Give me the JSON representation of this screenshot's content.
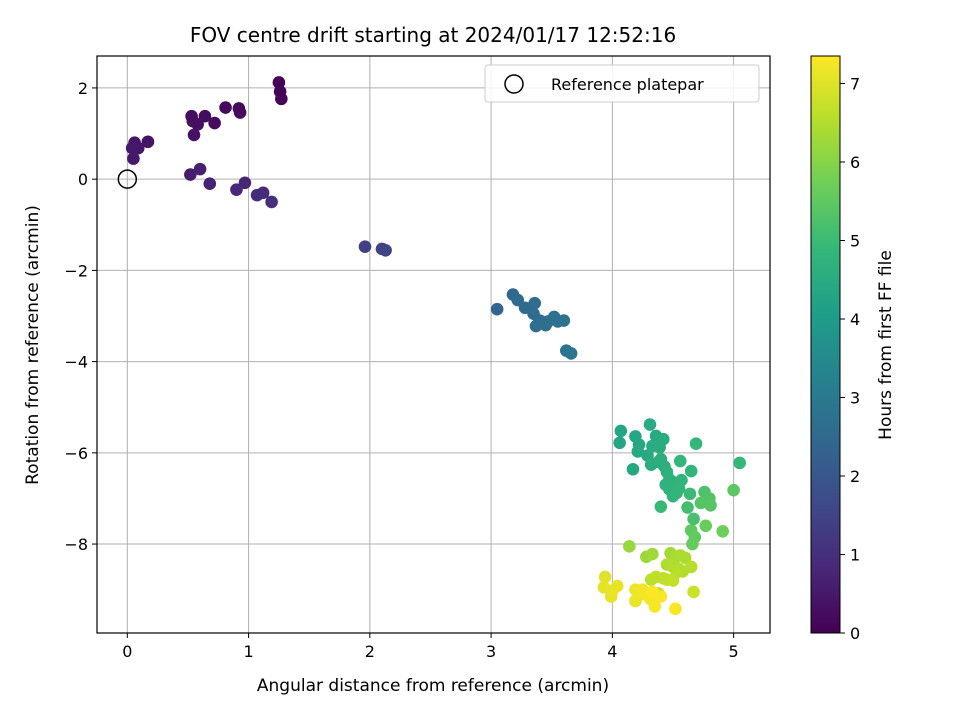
{
  "chart_data": {
    "type": "scatter",
    "title": "FOV centre drift starting at 2024/01/17 12:52:16",
    "xlabel": "Angular distance from reference (arcmin)",
    "ylabel": "Rotation from reference (arcmin)",
    "xlim": [
      -0.25,
      5.3
    ],
    "ylim": [
      -9.95,
      2.7
    ],
    "xticks": [
      0,
      1,
      2,
      3,
      4,
      5
    ],
    "yticks": [
      2,
      0,
      -2,
      -4,
      -6,
      -8
    ],
    "ytick_labels": [
      "2",
      "0",
      "−2",
      "−4",
      "−6",
      "−8"
    ],
    "grid": true,
    "legend": {
      "position": "top-right",
      "entries": [
        "Reference platepar"
      ]
    },
    "reference_point": {
      "x": 0,
      "y": 0
    },
    "colorbar": {
      "label": "Hours from first FF file",
      "range": [
        0,
        7.35
      ],
      "ticks": [
        0,
        1,
        2,
        3,
        4,
        5,
        6,
        7
      ],
      "colormap": "viridis",
      "stops": [
        "#440154",
        "#482878",
        "#3e4989",
        "#31688e",
        "#26828e",
        "#1f9e89",
        "#35b779",
        "#6ece58",
        "#b5de2b",
        "#fde725"
      ]
    },
    "points": [
      {
        "x": 1.25,
        "y": 2.12,
        "t": 0.05
      },
      {
        "x": 1.26,
        "y": 1.92,
        "t": 0.08
      },
      {
        "x": 1.27,
        "y": 1.76,
        "t": 0.1
      },
      {
        "x": 0.81,
        "y": 1.57,
        "t": 0.15
      },
      {
        "x": 0.92,
        "y": 1.55,
        "t": 0.18
      },
      {
        "x": 0.93,
        "y": 1.46,
        "t": 0.2
      },
      {
        "x": 0.72,
        "y": 1.23,
        "t": 0.22
      },
      {
        "x": 0.64,
        "y": 1.38,
        "t": 0.25
      },
      {
        "x": 0.53,
        "y": 1.38,
        "t": 0.28
      },
      {
        "x": 0.54,
        "y": 1.27,
        "t": 0.3
      },
      {
        "x": 0.58,
        "y": 1.2,
        "t": 0.32
      },
      {
        "x": 0.55,
        "y": 0.97,
        "t": 0.35
      },
      {
        "x": 0.17,
        "y": 0.82,
        "t": 0.4
      },
      {
        "x": 0.06,
        "y": 0.8,
        "t": 0.42
      },
      {
        "x": 0.09,
        "y": 0.68,
        "t": 0.45
      },
      {
        "x": 0.04,
        "y": 0.68,
        "t": 0.48
      },
      {
        "x": 0.05,
        "y": 0.45,
        "t": 0.5
      },
      {
        "x": 0.52,
        "y": 0.1,
        "t": 0.6
      },
      {
        "x": 0.6,
        "y": 0.22,
        "t": 0.65
      },
      {
        "x": 0.68,
        "y": -0.1,
        "t": 0.7
      },
      {
        "x": 0.97,
        "y": -0.08,
        "t": 0.78
      },
      {
        "x": 0.9,
        "y": -0.23,
        "t": 0.82
      },
      {
        "x": 1.12,
        "y": -0.3,
        "t": 0.9
      },
      {
        "x": 1.07,
        "y": -0.35,
        "t": 0.95
      },
      {
        "x": 1.19,
        "y": -0.5,
        "t": 1.0
      },
      {
        "x": 1.96,
        "y": -1.48,
        "t": 1.4
      },
      {
        "x": 2.1,
        "y": -1.53,
        "t": 1.45
      },
      {
        "x": 2.13,
        "y": -1.56,
        "t": 1.48
      },
      {
        "x": 3.05,
        "y": -2.85,
        "t": 2.4
      },
      {
        "x": 3.18,
        "y": -2.53,
        "t": 2.45
      },
      {
        "x": 3.22,
        "y": -2.65,
        "t": 2.5
      },
      {
        "x": 3.28,
        "y": -2.82,
        "t": 2.55
      },
      {
        "x": 3.36,
        "y": -2.72,
        "t": 2.58
      },
      {
        "x": 3.35,
        "y": -2.95,
        "t": 2.6
      },
      {
        "x": 3.4,
        "y": -3.1,
        "t": 2.63
      },
      {
        "x": 3.37,
        "y": -3.22,
        "t": 2.65
      },
      {
        "x": 3.45,
        "y": -3.2,
        "t": 2.68
      },
      {
        "x": 3.47,
        "y": -3.12,
        "t": 2.7
      },
      {
        "x": 3.52,
        "y": -3.02,
        "t": 2.73
      },
      {
        "x": 3.55,
        "y": -3.12,
        "t": 2.75
      },
      {
        "x": 3.6,
        "y": -3.1,
        "t": 2.78
      },
      {
        "x": 3.62,
        "y": -3.76,
        "t": 2.82
      },
      {
        "x": 3.66,
        "y": -3.82,
        "t": 2.85
      },
      {
        "x": 4.07,
        "y": -5.52,
        "t": 4.3
      },
      {
        "x": 4.06,
        "y": -5.78,
        "t": 4.32
      },
      {
        "x": 4.19,
        "y": -5.64,
        "t": 4.35
      },
      {
        "x": 4.22,
        "y": -5.82,
        "t": 4.38
      },
      {
        "x": 4.21,
        "y": -5.97,
        "t": 4.4
      },
      {
        "x": 4.17,
        "y": -6.36,
        "t": 4.42
      },
      {
        "x": 4.29,
        "y": -6.06,
        "t": 4.44
      },
      {
        "x": 4.31,
        "y": -5.38,
        "t": 4.46
      },
      {
        "x": 4.36,
        "y": -5.63,
        "t": 4.48
      },
      {
        "x": 4.33,
        "y": -5.85,
        "t": 4.5
      },
      {
        "x": 4.42,
        "y": -5.7,
        "t": 4.52
      },
      {
        "x": 4.39,
        "y": -5.88,
        "t": 4.54
      },
      {
        "x": 4.32,
        "y": -6.26,
        "t": 4.56
      },
      {
        "x": 4.38,
        "y": -6.2,
        "t": 4.58
      },
      {
        "x": 4.4,
        "y": -6.14,
        "t": 4.6
      },
      {
        "x": 4.43,
        "y": -6.3,
        "t": 4.62
      },
      {
        "x": 4.45,
        "y": -6.42,
        "t": 4.64
      },
      {
        "x": 4.47,
        "y": -6.58,
        "t": 4.66
      },
      {
        "x": 4.5,
        "y": -6.64,
        "t": 4.68
      },
      {
        "x": 4.44,
        "y": -6.7,
        "t": 4.7
      },
      {
        "x": 4.47,
        "y": -6.8,
        "t": 4.72
      },
      {
        "x": 4.5,
        "y": -6.95,
        "t": 4.74
      },
      {
        "x": 4.55,
        "y": -6.78,
        "t": 4.76
      },
      {
        "x": 4.57,
        "y": -6.6,
        "t": 4.78
      },
      {
        "x": 4.53,
        "y": -6.88,
        "t": 4.8
      },
      {
        "x": 4.56,
        "y": -6.18,
        "t": 4.82
      },
      {
        "x": 4.65,
        "y": -6.4,
        "t": 4.84
      },
      {
        "x": 4.69,
        "y": -5.8,
        "t": 4.86
      },
      {
        "x": 5.05,
        "y": -6.22,
        "t": 4.9
      },
      {
        "x": 4.4,
        "y": -7.18,
        "t": 4.95
      },
      {
        "x": 4.64,
        "y": -6.9,
        "t": 5.0
      },
      {
        "x": 4.62,
        "y": -7.2,
        "t": 5.1
      },
      {
        "x": 4.67,
        "y": -7.45,
        "t": 5.2
      },
      {
        "x": 4.76,
        "y": -6.86,
        "t": 5.25
      },
      {
        "x": 4.8,
        "y": -7.0,
        "t": 5.3
      },
      {
        "x": 4.73,
        "y": -7.1,
        "t": 5.35
      },
      {
        "x": 4.81,
        "y": -7.15,
        "t": 5.4
      },
      {
        "x": 5.0,
        "y": -6.82,
        "t": 5.45
      },
      {
        "x": 4.65,
        "y": -7.7,
        "t": 5.5
      },
      {
        "x": 4.68,
        "y": -7.85,
        "t": 5.55
      },
      {
        "x": 4.66,
        "y": -8.0,
        "t": 5.6
      },
      {
        "x": 4.77,
        "y": -7.6,
        "t": 5.65
      },
      {
        "x": 4.91,
        "y": -7.72,
        "t": 5.7
      },
      {
        "x": 4.14,
        "y": -8.05,
        "t": 6.2
      },
      {
        "x": 4.28,
        "y": -8.28,
        "t": 6.25
      },
      {
        "x": 4.33,
        "y": -8.22,
        "t": 6.3
      },
      {
        "x": 4.48,
        "y": -8.2,
        "t": 6.35
      },
      {
        "x": 4.52,
        "y": -8.3,
        "t": 6.4
      },
      {
        "x": 4.56,
        "y": -8.25,
        "t": 6.42
      },
      {
        "x": 4.6,
        "y": -8.3,
        "t": 6.44
      },
      {
        "x": 4.45,
        "y": -8.45,
        "t": 6.46
      },
      {
        "x": 4.5,
        "y": -8.5,
        "t": 6.48
      },
      {
        "x": 4.55,
        "y": -8.55,
        "t": 6.5
      },
      {
        "x": 4.58,
        "y": -8.6,
        "t": 6.52
      },
      {
        "x": 4.53,
        "y": -8.62,
        "t": 6.54
      },
      {
        "x": 4.65,
        "y": -8.5,
        "t": 6.56
      },
      {
        "x": 4.32,
        "y": -8.78,
        "t": 6.6
      },
      {
        "x": 4.36,
        "y": -8.72,
        "t": 6.62
      },
      {
        "x": 4.42,
        "y": -8.75,
        "t": 6.64
      },
      {
        "x": 4.45,
        "y": -8.78,
        "t": 6.66
      },
      {
        "x": 4.5,
        "y": -8.8,
        "t": 6.68
      },
      {
        "x": 4.38,
        "y": -9.08,
        "t": 6.75
      },
      {
        "x": 4.67,
        "y": -9.05,
        "t": 6.8
      },
      {
        "x": 3.94,
        "y": -8.72,
        "t": 7.0
      },
      {
        "x": 3.93,
        "y": -8.95,
        "t": 7.05
      },
      {
        "x": 3.99,
        "y": -9.15,
        "t": 7.08
      },
      {
        "x": 4.04,
        "y": -8.92,
        "t": 7.1
      },
      {
        "x": 4.0,
        "y": -9.02,
        "t": 7.12
      },
      {
        "x": 4.19,
        "y": -9.0,
        "t": 7.14
      },
      {
        "x": 4.19,
        "y": -9.25,
        "t": 7.16
      },
      {
        "x": 4.22,
        "y": -9.12,
        "t": 7.18
      },
      {
        "x": 4.25,
        "y": -9.0,
        "t": 7.2
      },
      {
        "x": 4.28,
        "y": -9.1,
        "t": 7.22
      },
      {
        "x": 4.31,
        "y": -9.2,
        "t": 7.24
      },
      {
        "x": 4.35,
        "y": -9.37,
        "t": 7.26
      },
      {
        "x": 4.4,
        "y": -9.15,
        "t": 7.28
      },
      {
        "x": 4.52,
        "y": -9.42,
        "t": 7.3
      },
      {
        "x": 4.33,
        "y": -9.05,
        "t": 7.32
      }
    ]
  }
}
